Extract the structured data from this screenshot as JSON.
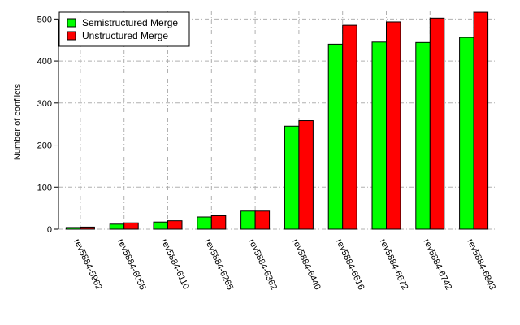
{
  "chart_data": {
    "type": "bar",
    "ylabel": "Number of conflicts",
    "xlabel": "",
    "ylim": [
      0,
      520
    ],
    "yticks": [
      0,
      100,
      200,
      300,
      400,
      500
    ],
    "categories": [
      "rev5884-5962",
      "rev5884-6055",
      "rev5884-6110",
      "rev5884-6265",
      "rev5884-6362",
      "rev5884-6440",
      "rev5884-6616",
      "rev5884-6672",
      "rev5884-6742",
      "rev5884-6843"
    ],
    "series": [
      {
        "name": "Semistructured Merge",
        "color": "#00ff00",
        "values": [
          4,
          12,
          17,
          29,
          43,
          245,
          440,
          445,
          444,
          456
        ]
      },
      {
        "name": "Unstructured Merge",
        "color": "#ff0000",
        "values": [
          5,
          15,
          20,
          32,
          43,
          258,
          485,
          493,
          502,
          516
        ]
      }
    ],
    "grid": true,
    "legend_position": "top-left"
  }
}
